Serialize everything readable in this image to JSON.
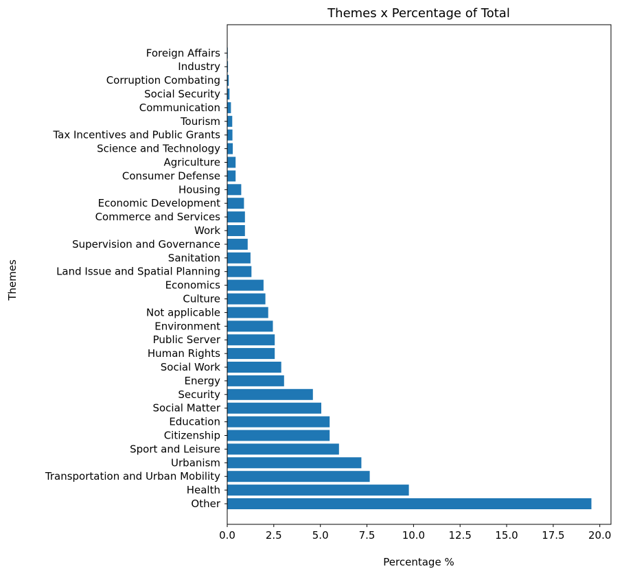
{
  "chart_data": {
    "type": "bar",
    "orientation": "horizontal",
    "title": "Themes x Percentage of Total",
    "xlabel": "Percentage %",
    "ylabel": "Themes",
    "xlim": [
      0,
      20.6
    ],
    "xticks": [
      0.0,
      2.5,
      5.0,
      7.5,
      10.0,
      12.5,
      15.0,
      17.5,
      20.0
    ],
    "xtick_labels": [
      "0.0",
      "2.5",
      "5.0",
      "7.5",
      "10.0",
      "12.5",
      "15.0",
      "17.5",
      "20.0"
    ],
    "grid": false,
    "bar_color": "#1f77b4",
    "categories": [
      "Other",
      "Health",
      "Transportation and Urban Mobility",
      "Urbanism",
      "Sport and Leisure",
      "Citizenship",
      "Education",
      "Social Matter",
      "Security",
      "Energy",
      "Social Work ",
      "Human Rights",
      "Public Server",
      "Environment",
      "Not applicable",
      "Culture",
      "Economics",
      "Land Issue and Spatial Planning",
      "Sanitation",
      "Supervision and Governance",
      "Work",
      "Commerce and Services",
      "Economic Development",
      "Housing",
      "Consumer Defense",
      "Agriculture",
      "Science and Technology",
      "Tax Incentives and Public Grants",
      "Tourism",
      "Communication",
      "Social Security",
      "Corruption Combating",
      "Industry",
      "Foreign Affairs"
    ],
    "values": [
      19.55,
      9.75,
      7.65,
      7.2,
      6.0,
      5.5,
      5.5,
      5.05,
      4.6,
      3.05,
      2.9,
      2.55,
      2.55,
      2.45,
      2.2,
      2.05,
      1.95,
      1.3,
      1.25,
      1.1,
      0.95,
      0.95,
      0.9,
      0.75,
      0.45,
      0.45,
      0.3,
      0.28,
      0.27,
      0.2,
      0.12,
      0.08,
      0.04,
      0.03
    ]
  }
}
